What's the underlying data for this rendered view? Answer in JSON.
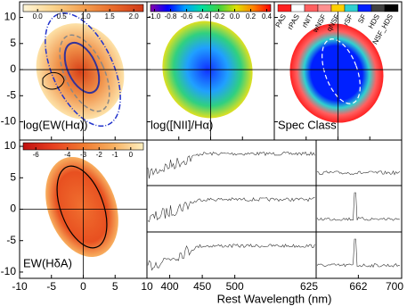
{
  "map_axes": {
    "xlim": [
      -10,
      10
    ],
    "xticks": [
      -10,
      -5,
      0,
      5,
      10
    ],
    "top_ylim": [
      -13.5,
      13
    ],
    "bottom_ylim": [
      -11,
      11
    ],
    "yticks": [
      -10,
      -5,
      0,
      5,
      10
    ]
  },
  "maps": [
    {
      "label": "log(EW(Hα))",
      "colorbar": {
        "lim": [
          -0.3,
          2.2
        ],
        "colormap": [
          "#fff6d8",
          "#fbd48c",
          "#f4a050",
          "#e86a2a",
          "#d03818"
        ],
        "ticks": [
          {
            "value": 0,
            "label": "0.0"
          },
          0.5,
          {
            "value": 1,
            "label": "1.0"
          },
          1.5,
          {
            "value": 2,
            "label": "2.0"
          }
        ]
      }
    },
    {
      "label": "log([NII]/Hα)",
      "colorbar": {
        "lim": [
          -1.05,
          0.45
        ],
        "colormap": [
          "#8800aa",
          "#0000ff",
          "#00a0ff",
          "#00e0a0",
          "#40d040",
          "#e0e000",
          "#ff8000",
          "#ff0000"
        ],
        "ticks": [
          {
            "value": -1,
            "label": "-1.0"
          },
          -0.8,
          -0.6,
          -0.4,
          -0.2,
          {
            "value": 0,
            "label": "0.0"
          },
          0.2,
          0.4
        ]
      }
    },
    {
      "label": "Spec Class",
      "classes": [
        "PAS",
        "rPAS",
        "rNIT",
        "wNSF",
        "qNSF",
        "rSF",
        "SF",
        "HDS",
        "NSF_HDS"
      ],
      "colors": [
        "#ff2020",
        "#ffffff",
        "#ff6060",
        "#ff9090",
        "#ffd000",
        "#30d0d0",
        "#0020ff",
        "#404040",
        "#000000"
      ]
    },
    {
      "label": "EW(HδA)",
      "colorbar": {
        "lim": [
          -6.8,
          0.8
        ],
        "colormap": [
          "#c01010",
          "#e84020",
          "#f07a30",
          "#f8b060",
          "#fff0c0"
        ],
        "ticks": [
          -6,
          -4,
          -3,
          -2,
          -1,
          0
        ]
      }
    }
  ],
  "spectra": {
    "x_label": "Rest Wavelength (nm)",
    "left": {
      "xlim": [
        365,
        625
      ],
      "xticks": [
        400,
        450,
        500,
        625
      ]
    },
    "right": {
      "xlim": [
        625,
        700
      ],
      "xticks": [
        662,
        700
      ]
    }
  }
}
